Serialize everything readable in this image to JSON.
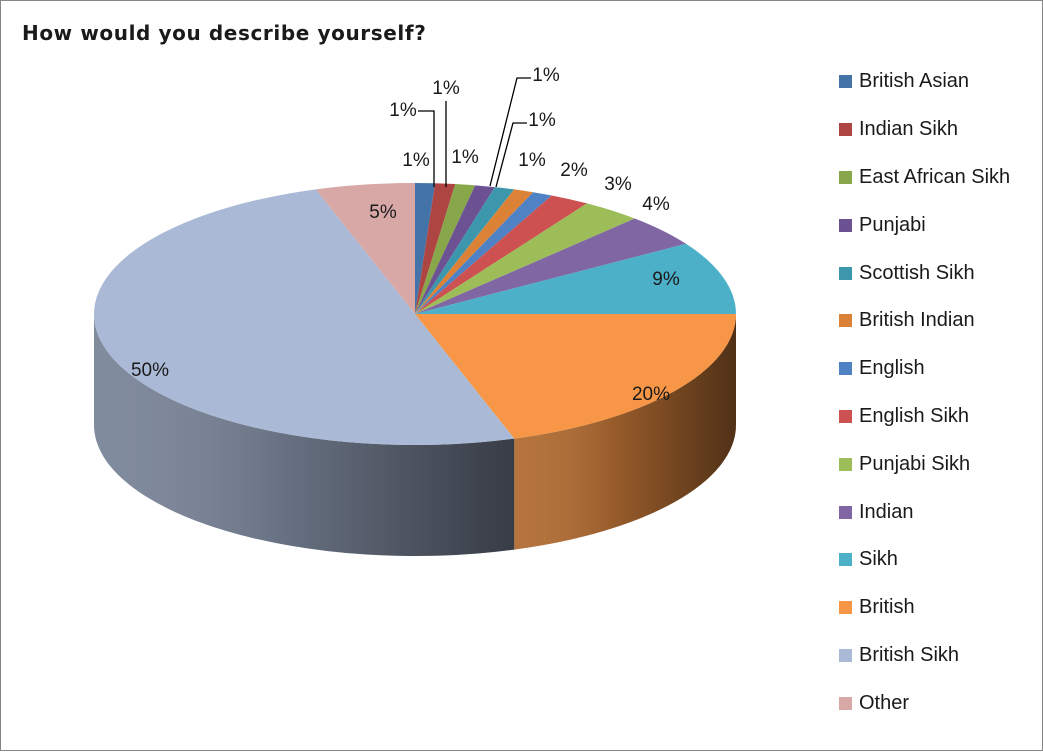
{
  "chart_data": {
    "type": "pie",
    "title": "How would you describe yourself?",
    "legend_position": "right",
    "three_d": true,
    "slices": [
      {
        "label": "British Asian",
        "value": 1,
        "display": "1%",
        "color": "#4473a8"
      },
      {
        "label": "Indian Sikh",
        "value": 1,
        "display": "1%",
        "color": "#ad4542"
      },
      {
        "label": "East African Sikh",
        "value": 1,
        "display": "1%",
        "color": "#88a64a"
      },
      {
        "label": "Punjabi",
        "value": 1,
        "display": "1%",
        "color": "#6c5293"
      },
      {
        "label": "Scottish Sikh",
        "value": 1,
        "display": "1%",
        "color": "#3c97ad"
      },
      {
        "label": "British Indian",
        "value": 1,
        "display": "1%",
        "color": "#dc8237"
      },
      {
        "label": "English",
        "value": 1,
        "display": "1%",
        "color": "#4f82c4"
      },
      {
        "label": "English Sikh",
        "value": 2,
        "display": "2%",
        "color": "#cc5150"
      },
      {
        "label": "Punjabi Sikh",
        "value": 3,
        "display": "3%",
        "color": "#9cbd58"
      },
      {
        "label": "Indian",
        "value": 4,
        "display": "4%",
        "color": "#8066a2"
      },
      {
        "label": "Sikh",
        "value": 9,
        "display": "9%",
        "color": "#4bb0c8"
      },
      {
        "label": "British",
        "value": 20,
        "display": "20%",
        "color": "#f79646"
      },
      {
        "label": "British Sikh",
        "value": 50,
        "display": "50%",
        "color": "#aab9d5"
      },
      {
        "label": "Other",
        "value": 5,
        "display": "5%",
        "color": "#d8a8a7"
      }
    ]
  }
}
